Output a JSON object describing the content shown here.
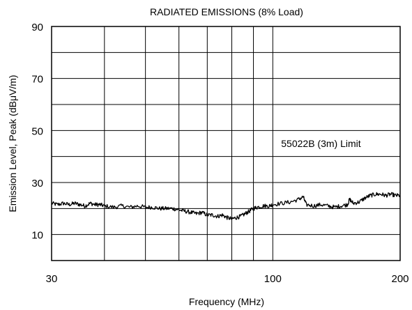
{
  "chart_data": {
    "type": "line",
    "title": "RADIATED EMISSIONS (8% Load)",
    "xlabel": "Frequency (MHz)",
    "ylabel": "Emission Level, Peak (dBμV/m)",
    "x_scale": "log",
    "xlim": [
      30,
      200
    ],
    "ylim": [
      0,
      90
    ],
    "x_tick_labels": [
      {
        "value": 30,
        "label": "30"
      },
      {
        "value": 100,
        "label": "100"
      },
      {
        "value": 200,
        "label": "200"
      }
    ],
    "x_gridlines": [
      30,
      40,
      50,
      60,
      70,
      80,
      90,
      100,
      200
    ],
    "y_tick_labels": [
      {
        "value": 10,
        "label": "10"
      },
      {
        "value": 30,
        "label": "30"
      },
      {
        "value": 50,
        "label": "50"
      },
      {
        "value": 70,
        "label": "70"
      },
      {
        "value": 90,
        "label": "90"
      }
    ],
    "y_gridlines": [
      0,
      10,
      20,
      30,
      40,
      50,
      60,
      70,
      80,
      90
    ],
    "grid": true,
    "annotations": [
      {
        "text": "55022B (3m) Limit",
        "x": 130,
        "y": 45
      }
    ],
    "series": [
      {
        "color": "#000000",
        "x": [
          30,
          31,
          32,
          33,
          34,
          35,
          36,
          37,
          38,
          39,
          40,
          42,
          44,
          46,
          48,
          50,
          52,
          54,
          56,
          58,
          60,
          62,
          64,
          66,
          68,
          70,
          72,
          74,
          76,
          78,
          80,
          82,
          84,
          86,
          88,
          90,
          92,
          95,
          98,
          100,
          105,
          110,
          115,
          118,
          120,
          125,
          130,
          135,
          140,
          145,
          150,
          152,
          155,
          160,
          165,
          170,
          175,
          180,
          185,
          190,
          195,
          200
        ],
        "y": [
          22,
          21.5,
          22,
          21.5,
          22,
          21.5,
          21,
          22,
          21.5,
          21.5,
          21,
          20.5,
          21,
          20.5,
          21,
          20.5,
          20.5,
          20,
          20,
          20,
          19.5,
          19,
          18.5,
          18,
          18.5,
          17.5,
          17.5,
          17,
          17.5,
          16.5,
          16,
          16.5,
          17,
          18,
          19,
          20,
          20.5,
          21,
          21,
          21.5,
          22,
          22.5,
          23.5,
          24.5,
          21.5,
          21,
          21.5,
          21,
          20.5,
          21,
          21.5,
          23.5,
          22,
          22.5,
          24,
          25,
          25.5,
          25.5,
          25,
          25.5,
          25,
          25
        ]
      }
    ]
  }
}
